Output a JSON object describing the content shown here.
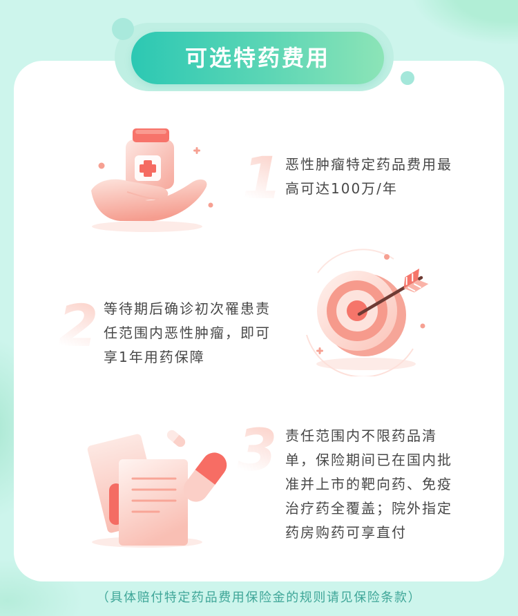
{
  "page": {
    "background": "#cdf5ec",
    "card": "#ffffff",
    "text_color": "#474747",
    "illustration_accent": "#f5756a",
    "footer_color": "#3fa698"
  },
  "header": {
    "title": "可选特药费用",
    "gradient": [
      "#2cc8b3",
      "#8ce4b7"
    ]
  },
  "items": [
    {
      "number": "1",
      "icon": "hand-holding-medicine-bottle-icon",
      "lines": [
        "恶性肿瘤特定药品费用最",
        "高可达100万/年"
      ]
    },
    {
      "number": "2",
      "icon": "target-with-arrow-icon",
      "lines": [
        "等待期后确诊初次罹患责",
        "任范围内恶性肿瘤，即可",
        "享1年用药保障"
      ]
    },
    {
      "number": "3",
      "icon": "prescription-document-with-capsule-icon",
      "lines": [
        "责任范围内不限药品清",
        "单，保险期间已在国内批",
        "准并上市的靶向药、免疫",
        "治疗药全覆盖；院外指定",
        "药房购药可享直付"
      ]
    }
  ],
  "footer": {
    "note": "（具体赔付特定药品费用保险金的规则请见保险条款）"
  }
}
